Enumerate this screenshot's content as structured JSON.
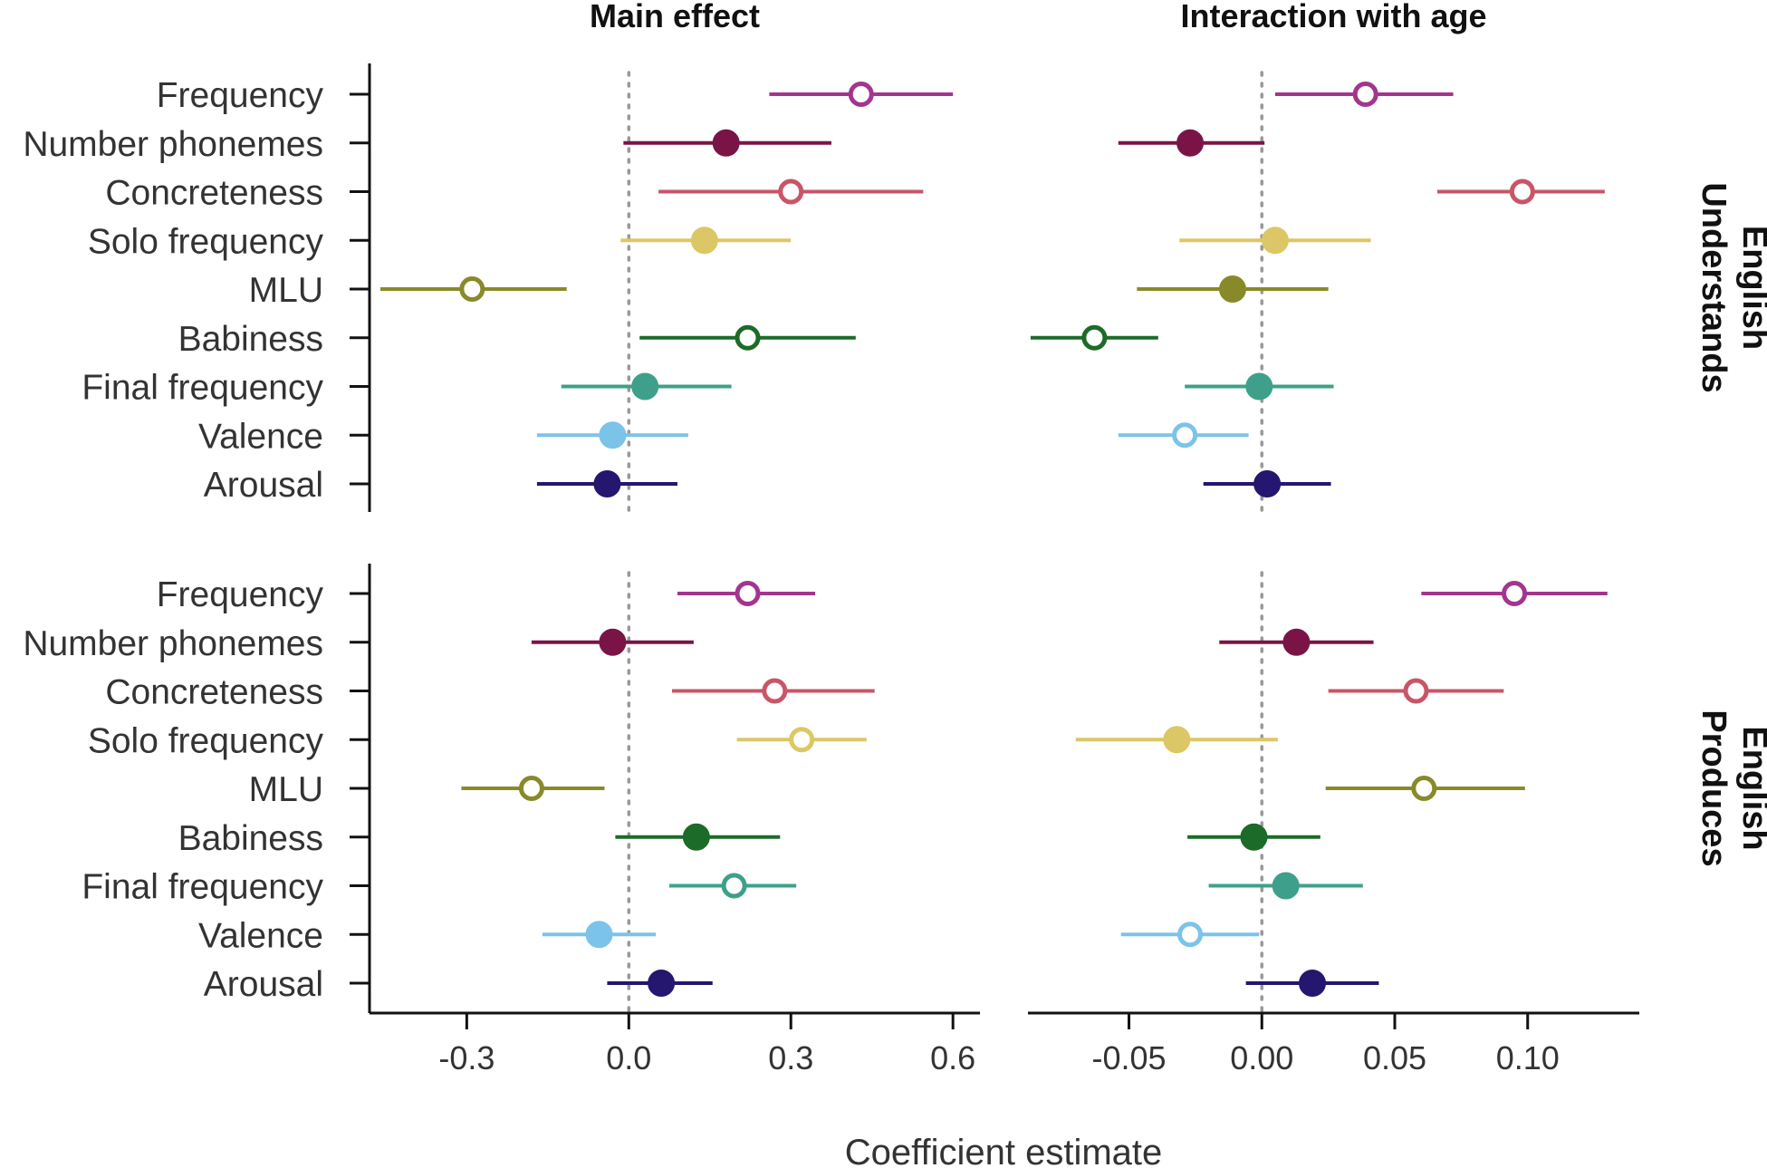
{
  "chart_data": {
    "type": "scatter",
    "subtype": "coefficient-plot-with-intervals",
    "xlabel": "Coefficient estimate",
    "legend": "none",
    "grid": false,
    "filled_marker_meaning_hidden": true,
    "predictors": [
      "Frequency",
      "Number phonemes",
      "Concreteness",
      "Solo frequency",
      "MLU",
      "Babiness",
      "Final frequency",
      "Valence",
      "Arousal"
    ],
    "colors": {
      "Frequency": "#a3358f",
      "Number phonemes": "#7a1447",
      "Concreteness": "#c95567",
      "Solo frequency": "#dcc766",
      "MLU": "#888a2a",
      "Babiness": "#1d6b28",
      "Final frequency": "#3ea08a",
      "Valence": "#7cc3ea",
      "Arousal": "#25166f"
    },
    "columns": [
      {
        "title": "Main effect",
        "xlim": [
          -0.48,
          0.65
        ],
        "ticks": [
          -0.3,
          0.0,
          0.3,
          0.6
        ],
        "tick_labels": [
          "-0.3",
          "0.0",
          "0.3",
          "0.6"
        ]
      },
      {
        "title": "Interaction with age",
        "xlim": [
          -0.088,
          0.142
        ],
        "ticks": [
          -0.05,
          0.0,
          0.05,
          0.1
        ],
        "tick_labels": [
          "-0.05",
          "0.00",
          "0.05",
          "0.10"
        ]
      }
    ],
    "rows": [
      {
        "strip": [
          "English",
          "Understands"
        ],
        "main": [
          {
            "predictor": "Frequency",
            "est": 0.43,
            "lo": 0.26,
            "hi": 0.6,
            "filled": false
          },
          {
            "predictor": "Number phonemes",
            "est": 0.18,
            "lo": -0.01,
            "hi": 0.375,
            "filled": true
          },
          {
            "predictor": "Concreteness",
            "est": 0.3,
            "lo": 0.055,
            "hi": 0.545,
            "filled": false
          },
          {
            "predictor": "Solo frequency",
            "est": 0.14,
            "lo": -0.015,
            "hi": 0.3,
            "filled": true
          },
          {
            "predictor": "MLU",
            "est": -0.29,
            "lo": -0.46,
            "hi": -0.115,
            "filled": false
          },
          {
            "predictor": "Babiness",
            "est": 0.22,
            "lo": 0.02,
            "hi": 0.42,
            "filled": false
          },
          {
            "predictor": "Final frequency",
            "est": 0.03,
            "lo": -0.125,
            "hi": 0.19,
            "filled": true
          },
          {
            "predictor": "Valence",
            "est": -0.03,
            "lo": -0.17,
            "hi": 0.11,
            "filled": true
          },
          {
            "predictor": "Arousal",
            "est": -0.04,
            "lo": -0.17,
            "hi": 0.09,
            "filled": true
          }
        ],
        "interaction": [
          {
            "predictor": "Frequency",
            "est": 0.039,
            "lo": 0.005,
            "hi": 0.072,
            "filled": false
          },
          {
            "predictor": "Number phonemes",
            "est": -0.027,
            "lo": -0.054,
            "hi": 0.001,
            "filled": true
          },
          {
            "predictor": "Concreteness",
            "est": 0.098,
            "lo": 0.066,
            "hi": 0.129,
            "filled": false
          },
          {
            "predictor": "Solo frequency",
            "est": 0.005,
            "lo": -0.031,
            "hi": 0.041,
            "filled": true
          },
          {
            "predictor": "MLU",
            "est": -0.011,
            "lo": -0.047,
            "hi": 0.025,
            "filled": true
          },
          {
            "predictor": "Babiness",
            "est": -0.063,
            "lo": -0.087,
            "hi": -0.039,
            "filled": false
          },
          {
            "predictor": "Final frequency",
            "est": -0.001,
            "lo": -0.029,
            "hi": 0.027,
            "filled": true
          },
          {
            "predictor": "Valence",
            "est": -0.029,
            "lo": -0.054,
            "hi": -0.005,
            "filled": false
          },
          {
            "predictor": "Arousal",
            "est": 0.002,
            "lo": -0.022,
            "hi": 0.026,
            "filled": true
          }
        ]
      },
      {
        "strip": [
          "English",
          "Produces"
        ],
        "main": [
          {
            "predictor": "Frequency",
            "est": 0.22,
            "lo": 0.09,
            "hi": 0.345,
            "filled": false
          },
          {
            "predictor": "Number phonemes",
            "est": -0.03,
            "lo": -0.18,
            "hi": 0.12,
            "filled": true
          },
          {
            "predictor": "Concreteness",
            "est": 0.27,
            "lo": 0.08,
            "hi": 0.455,
            "filled": false
          },
          {
            "predictor": "Solo frequency",
            "est": 0.32,
            "lo": 0.2,
            "hi": 0.44,
            "filled": false
          },
          {
            "predictor": "MLU",
            "est": -0.18,
            "lo": -0.31,
            "hi": -0.045,
            "filled": false
          },
          {
            "predictor": "Babiness",
            "est": 0.125,
            "lo": -0.025,
            "hi": 0.28,
            "filled": true
          },
          {
            "predictor": "Final frequency",
            "est": 0.195,
            "lo": 0.075,
            "hi": 0.31,
            "filled": false
          },
          {
            "predictor": "Valence",
            "est": -0.055,
            "lo": -0.16,
            "hi": 0.05,
            "filled": true
          },
          {
            "predictor": "Arousal",
            "est": 0.06,
            "lo": -0.04,
            "hi": 0.155,
            "filled": true
          }
        ],
        "interaction": [
          {
            "predictor": "Frequency",
            "est": 0.095,
            "lo": 0.06,
            "hi": 0.13,
            "filled": false
          },
          {
            "predictor": "Number phonemes",
            "est": 0.013,
            "lo": -0.016,
            "hi": 0.042,
            "filled": true
          },
          {
            "predictor": "Concreteness",
            "est": 0.058,
            "lo": 0.025,
            "hi": 0.091,
            "filled": false
          },
          {
            "predictor": "Solo frequency",
            "est": -0.032,
            "lo": -0.07,
            "hi": 0.006,
            "filled": true
          },
          {
            "predictor": "MLU",
            "est": 0.061,
            "lo": 0.024,
            "hi": 0.099,
            "filled": false
          },
          {
            "predictor": "Babiness",
            "est": -0.003,
            "lo": -0.028,
            "hi": 0.022,
            "filled": true
          },
          {
            "predictor": "Final frequency",
            "est": 0.009,
            "lo": -0.02,
            "hi": 0.038,
            "filled": true
          },
          {
            "predictor": "Valence",
            "est": -0.027,
            "lo": -0.053,
            "hi": -0.001,
            "filled": false
          },
          {
            "predictor": "Arousal",
            "est": 0.019,
            "lo": -0.006,
            "hi": 0.044,
            "filled": true
          }
        ]
      }
    ]
  }
}
